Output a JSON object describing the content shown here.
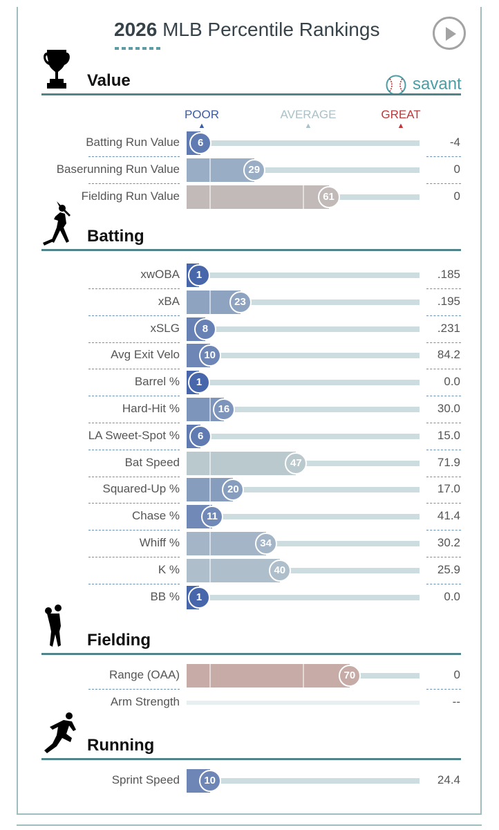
{
  "header": {
    "title_bold": "2026",
    "title_rest": " MLB Percentile Rankings",
    "play_icon": "play-icon"
  },
  "brand": {
    "text": "savant",
    "icon": "baseball-icon",
    "color": "#4a9ea5"
  },
  "legend": {
    "poor": "POOR",
    "average": "AVERAGE",
    "great": "GREAT",
    "poor_color": "#3b5ba6",
    "average_color": "#a9c1c7",
    "great_color": "#c0363a"
  },
  "chart_data": {
    "type": "bar",
    "title": "2026 MLB Percentile Rankings",
    "xlim": [
      0,
      100
    ],
    "groups": [
      {
        "name": "Value",
        "icon": "trophy-icon",
        "metrics": [
          {
            "label": "Batting Run Value",
            "percentile": 6,
            "value": "-4"
          },
          {
            "label": "Baserunning Run Value",
            "percentile": 29,
            "value": "0"
          },
          {
            "label": "Fielding Run Value",
            "percentile": 61,
            "value": "0"
          }
        ]
      },
      {
        "name": "Batting",
        "icon": "batter-icon",
        "metrics": [
          {
            "label": "xwOBA",
            "percentile": 1,
            "value": ".185"
          },
          {
            "label": "xBA",
            "percentile": 23,
            "value": ".195"
          },
          {
            "label": "xSLG",
            "percentile": 8,
            "value": ".231"
          },
          {
            "label": "Avg Exit Velo",
            "percentile": 10,
            "value": "84.2"
          },
          {
            "label": "Barrel %",
            "percentile": 1,
            "value": "0.0"
          },
          {
            "label": "Hard-Hit %",
            "percentile": 16,
            "value": "30.0"
          },
          {
            "label": "LA Sweet-Spot %",
            "percentile": 6,
            "value": "15.0"
          },
          {
            "label": "Bat Speed",
            "percentile": 47,
            "value": "71.9"
          },
          {
            "label": "Squared-Up %",
            "percentile": 20,
            "value": "17.0"
          },
          {
            "label": "Chase %",
            "percentile": 11,
            "value": "41.4"
          },
          {
            "label": "Whiff %",
            "percentile": 34,
            "value": "30.2"
          },
          {
            "label": "K %",
            "percentile": 40,
            "value": "25.9"
          },
          {
            "label": "BB %",
            "percentile": 1,
            "value": "0.0"
          }
        ]
      },
      {
        "name": "Fielding",
        "icon": "fielder-icon",
        "metrics": [
          {
            "label": "Range (OAA)",
            "percentile": 70,
            "value": "0"
          },
          {
            "label": "Arm Strength",
            "percentile": null,
            "value": "--"
          }
        ]
      },
      {
        "name": "Running",
        "icon": "runner-icon",
        "metrics": [
          {
            "label": "Sprint Speed",
            "percentile": 10,
            "value": "24.4"
          }
        ]
      }
    ]
  }
}
